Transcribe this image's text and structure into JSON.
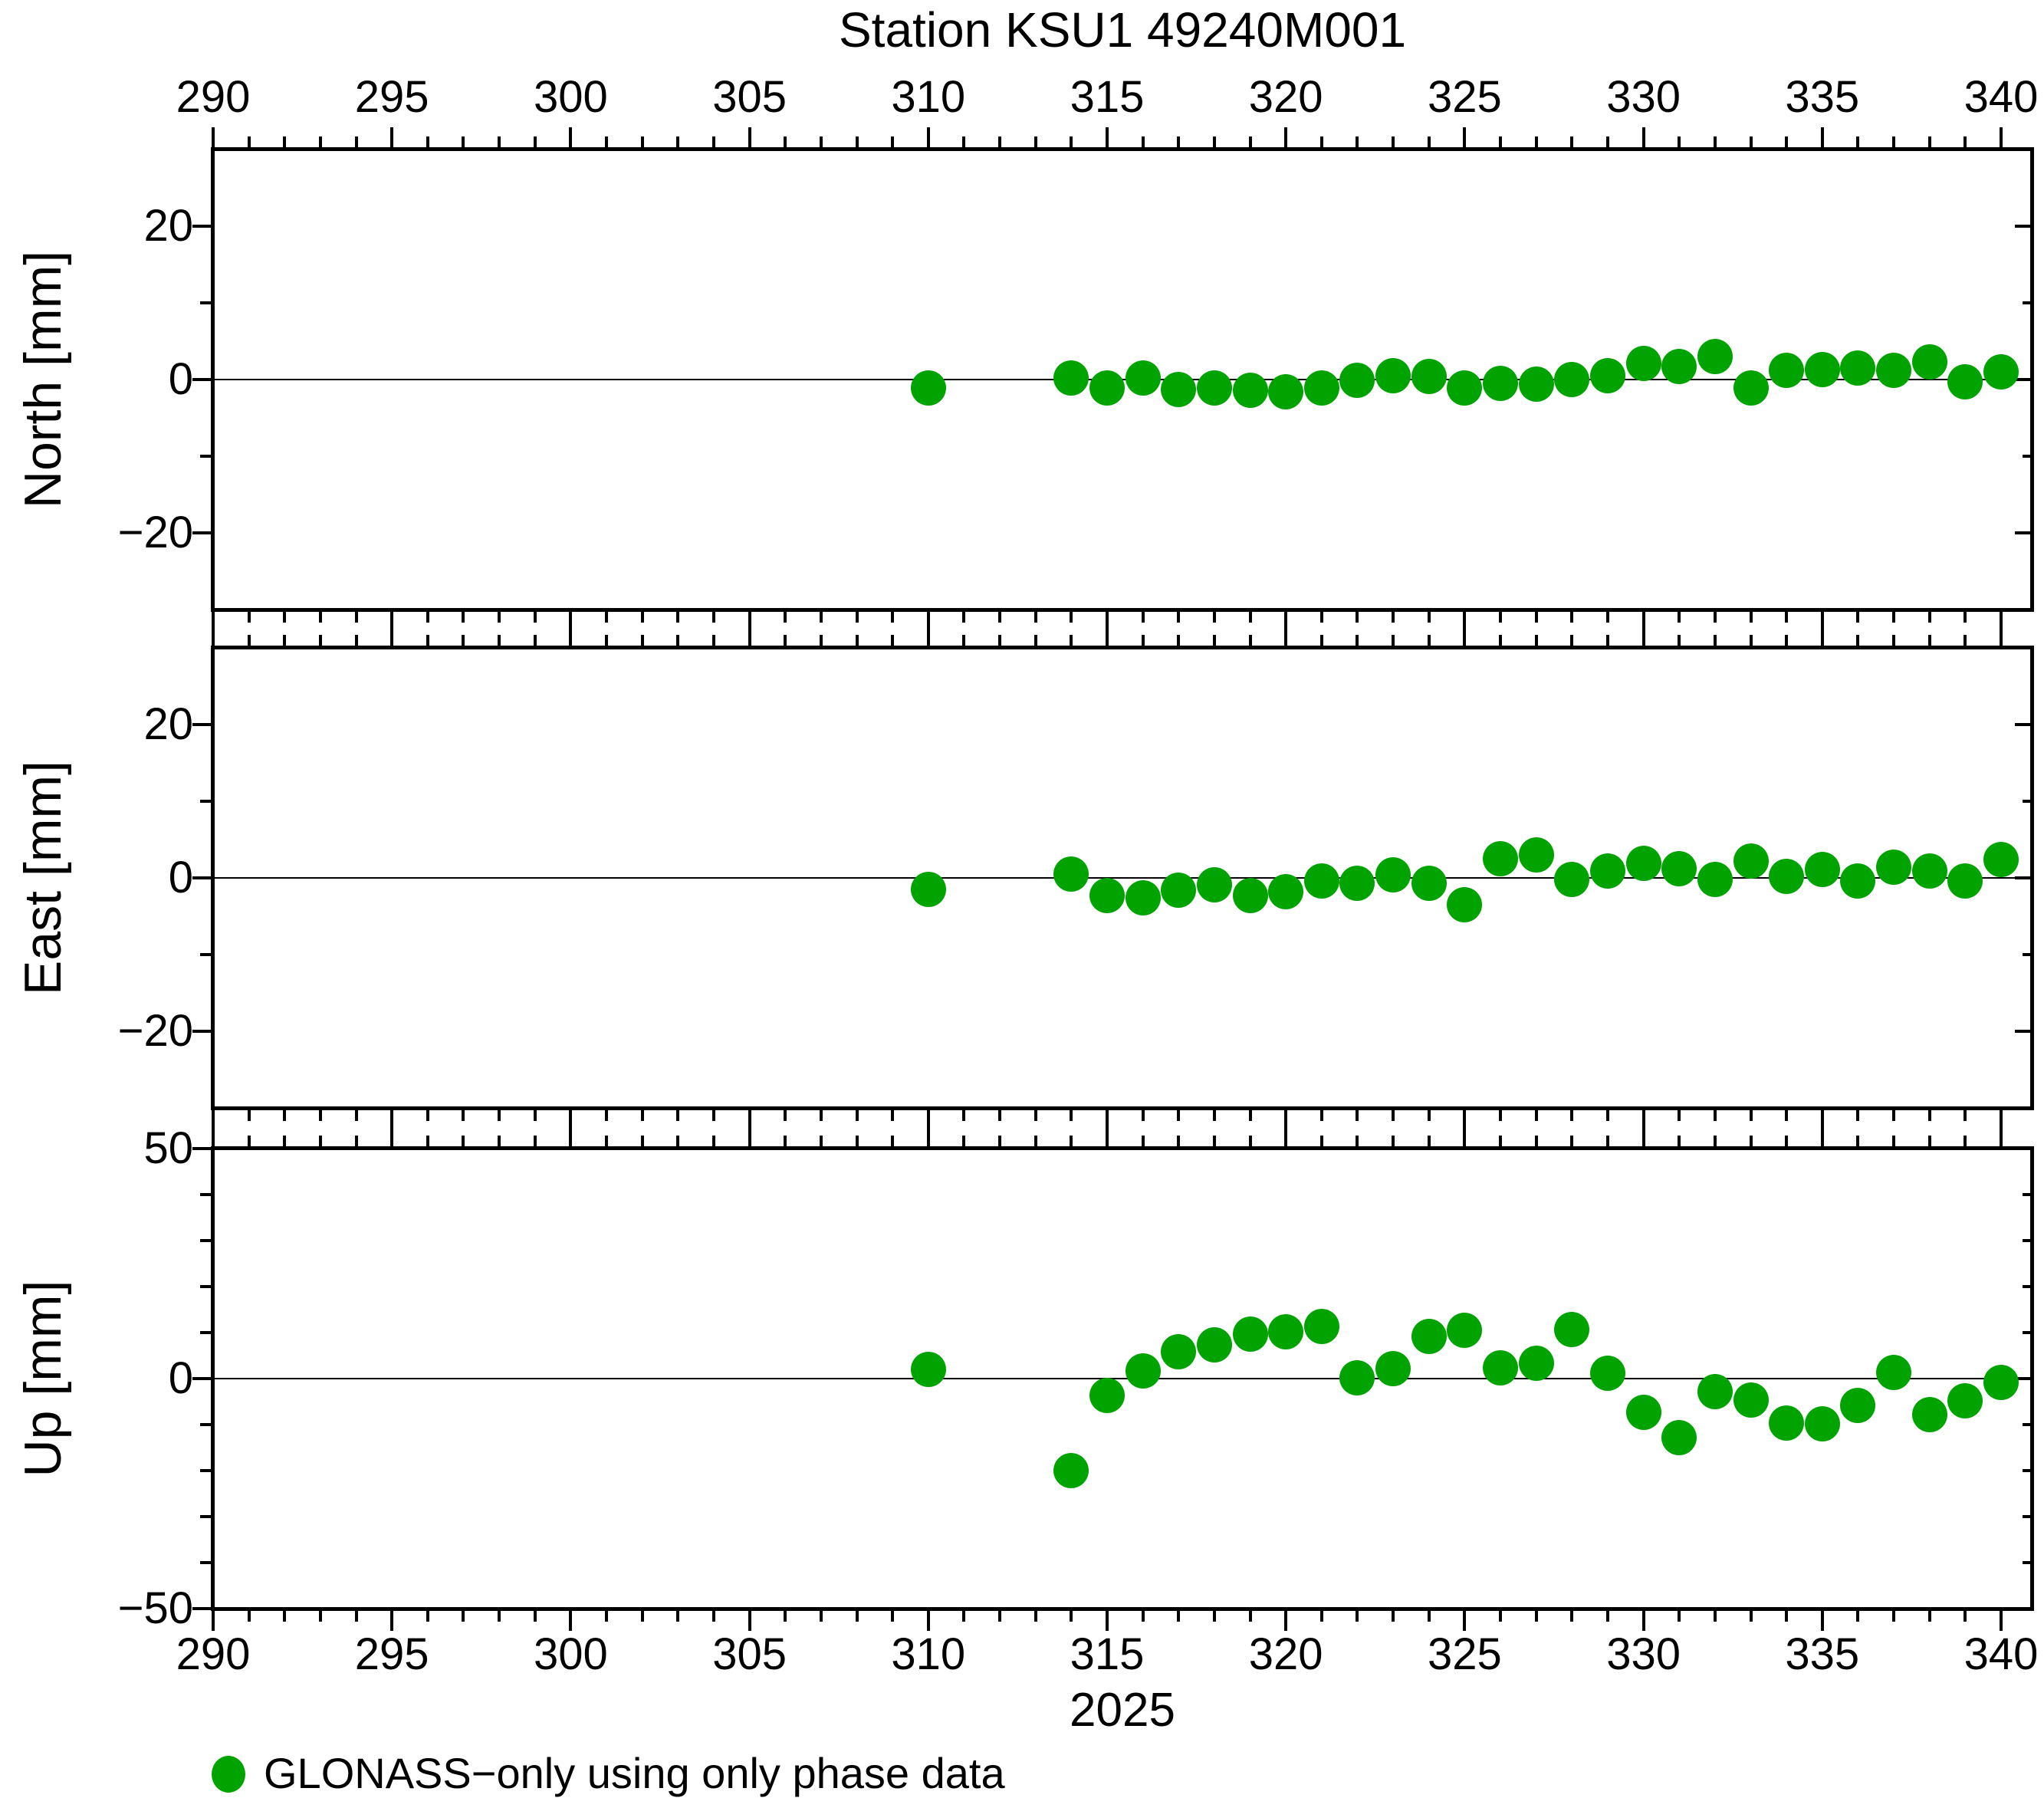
{
  "title": "Station KSU1 49240M001",
  "year_label": "2025",
  "legend": {
    "label": "GLONASS−only using only phase data",
    "marker_color": "#00a300"
  },
  "colors": {
    "marker": "#00a300",
    "frame": "#000000",
    "background": "#ffffff"
  },
  "axes": {
    "x": {
      "major_tick_values": [
        290,
        295,
        300,
        305,
        310,
        315,
        320,
        325,
        330,
        335,
        340
      ],
      "major_tick_labels": [
        "290",
        "295",
        "300",
        "305",
        "310",
        "315",
        "320",
        "325",
        "330",
        "335",
        "340"
      ],
      "minor_step": 1,
      "range": [
        290,
        340.8
      ]
    },
    "panels": [
      {
        "name": "north",
        "ylabel": "North [mm]",
        "range": [
          -30,
          30
        ],
        "major_ticks": [
          {
            "value": 20,
            "label": "20"
          },
          {
            "value": 0,
            "label": "0"
          },
          {
            "value": -20,
            "label": "−20"
          }
        ],
        "minor_ticks": [
          10,
          -10
        ]
      },
      {
        "name": "east",
        "ylabel": "East [mm]",
        "range": [
          -30,
          30
        ],
        "major_ticks": [
          {
            "value": 20,
            "label": "20"
          },
          {
            "value": 0,
            "label": "0"
          },
          {
            "value": -20,
            "label": "−20"
          }
        ],
        "minor_ticks": [
          10,
          -10
        ]
      },
      {
        "name": "up",
        "ylabel": "Up [mm]",
        "range": [
          -50,
          50
        ],
        "major_ticks": [
          {
            "value": 50,
            "label": "50"
          },
          {
            "value": 0,
            "label": "0"
          },
          {
            "value": -50,
            "label": "−50"
          }
        ],
        "minor_ticks": [
          40,
          30,
          20,
          10,
          -10,
          -20,
          -30,
          -40
        ]
      }
    ]
  },
  "chart_data": {
    "type": "scatter",
    "title": "Station KSU1 49240M001",
    "xlabel": "2025",
    "x_units": "day of year",
    "xlim": [
      290,
      340.8
    ],
    "marker": "filled-circle",
    "marker_color": "#00a300",
    "legend_entry": "GLONASS−only using only phase data",
    "x_days": [
      310,
      314,
      315,
      316,
      317,
      318,
      319,
      320,
      321,
      322,
      323,
      324,
      325,
      326,
      327,
      328,
      329,
      330,
      331,
      332,
      333,
      334,
      335,
      336,
      337,
      338,
      339,
      340
    ],
    "series": [
      {
        "name": "North [mm]",
        "ylim": [
          -30,
          30
        ],
        "values": [
          -1.1,
          0.2,
          -1.1,
          0.2,
          -1.3,
          -1.1,
          -1.4,
          -1.6,
          -1.1,
          -0.1,
          0.5,
          0.4,
          -1.1,
          -0.5,
          -0.6,
          0.0,
          0.5,
          2.1,
          1.7,
          3.0,
          -1.1,
          1.2,
          1.3,
          1.5,
          1.2,
          2.3,
          -0.3,
          1.0
        ]
      },
      {
        "name": "East [mm]",
        "ylim": [
          -30,
          30
        ],
        "values": [
          -1.5,
          0.5,
          -2.3,
          -2.6,
          -1.6,
          -0.9,
          -2.3,
          -1.8,
          -0.4,
          -0.7,
          0.4,
          -0.7,
          -3.5,
          2.5,
          3.0,
          -0.2,
          0.9,
          1.9,
          1.2,
          -0.2,
          2.2,
          0.2,
          1.1,
          -0.4,
          1.4,
          0.9,
          -0.4,
          2.4
        ]
      },
      {
        "name": "Up [mm]",
        "ylim": [
          -50,
          50
        ],
        "values": [
          2.0,
          -20.0,
          -3.6,
          1.6,
          5.9,
          7.4,
          9.6,
          10.1,
          11.4,
          0.1,
          2.1,
          9.1,
          10.5,
          2.4,
          3.4,
          10.6,
          1.1,
          -7.4,
          -12.9,
          -2.9,
          -4.7,
          -9.7,
          -9.9,
          -5.9,
          1.4,
          -7.9,
          -4.9,
          -0.9
        ]
      }
    ]
  }
}
